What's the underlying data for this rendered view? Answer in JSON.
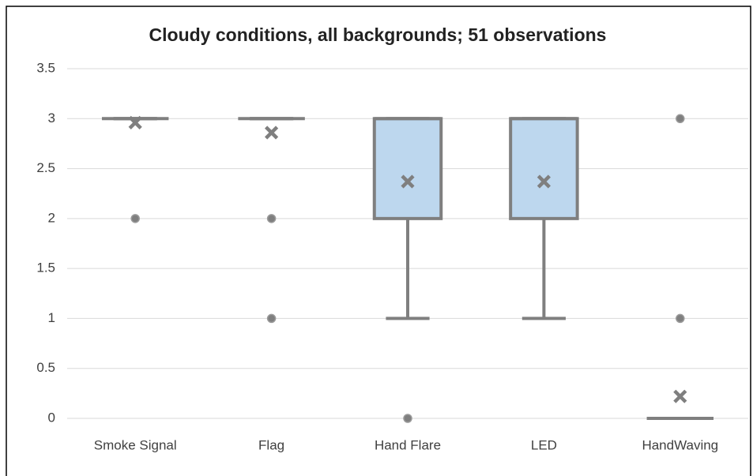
{
  "chart_data": {
    "type": "box",
    "title": "Cloudy conditions, all backgrounds; 51 observations",
    "categories": [
      "Smoke Signal",
      "Flag",
      "Hand Flare",
      "LED",
      "HandWaving"
    ],
    "boxes": [
      {
        "min": 3,
        "q1": 3,
        "median": 3,
        "q3": 3,
        "max": 3,
        "mean": 2.96,
        "outliers": [
          2
        ]
      },
      {
        "min": 3,
        "q1": 3,
        "median": 3,
        "q3": 3,
        "max": 3,
        "mean": 2.86,
        "outliers": [
          2,
          1
        ]
      },
      {
        "min": 1,
        "q1": 2,
        "median": 3,
        "q3": 3,
        "max": 3,
        "mean": 2.37,
        "outliers": [
          0
        ]
      },
      {
        "min": 1,
        "q1": 2,
        "median": 3,
        "q3": 3,
        "max": 3,
        "mean": 2.37,
        "outliers": []
      },
      {
        "min": 0,
        "q1": 0,
        "median": 0,
        "q3": 0,
        "max": 0,
        "mean": 0.22,
        "outliers": [
          3,
          1
        ]
      }
    ],
    "color": "#bdd7ee",
    "line_color": "#7f7f7f",
    "ylim": [
      0,
      3.5
    ],
    "yticks": [
      0,
      0.5,
      1,
      1.5,
      2,
      2.5,
      3,
      3.5
    ],
    "grid": true
  }
}
